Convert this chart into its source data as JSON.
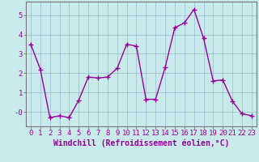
{
  "x": [
    0,
    1,
    2,
    3,
    4,
    5,
    6,
    7,
    8,
    9,
    10,
    11,
    12,
    13,
    14,
    15,
    16,
    17,
    18,
    19,
    20,
    21,
    22,
    23
  ],
  "y": [
    3.5,
    2.2,
    -0.3,
    -0.2,
    -0.3,
    0.6,
    1.8,
    1.75,
    1.8,
    2.25,
    3.5,
    3.4,
    0.65,
    0.65,
    2.3,
    4.35,
    4.6,
    5.3,
    3.8,
    1.6,
    1.65,
    0.55,
    -0.1,
    -0.2
  ],
  "line_color": "#990099",
  "marker": "+",
  "marker_size": 4,
  "linewidth": 1.0,
  "bg_color": "#c8eaea",
  "grid_color": "#99bbcc",
  "xlabel": "Windchill (Refroidissement éolien,°C)",
  "xlim": [
    -0.5,
    23.5
  ],
  "ylim": [
    -0.75,
    5.7
  ],
  "yticks": [
    0,
    1,
    2,
    3,
    4,
    5
  ],
  "ytick_labels": [
    "-0",
    "1",
    "2",
    "3",
    "4",
    "5"
  ],
  "xticks": [
    0,
    1,
    2,
    3,
    4,
    5,
    6,
    7,
    8,
    9,
    10,
    11,
    12,
    13,
    14,
    15,
    16,
    17,
    18,
    19,
    20,
    21,
    22,
    23
  ],
  "xlabel_fontsize": 7,
  "tick_fontsize": 6.5,
  "xlabel_color": "#990099",
  "spine_color": "#777777"
}
